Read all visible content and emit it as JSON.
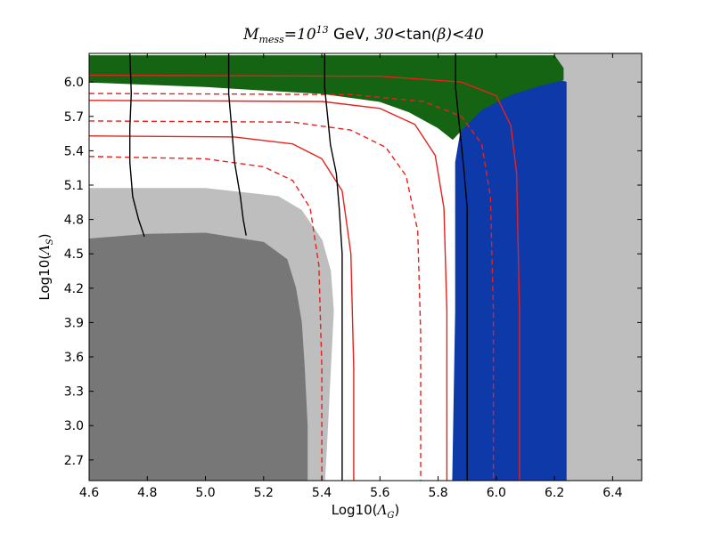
{
  "chart_data": {
    "type": "area",
    "title_parts": {
      "symbol_main": "M",
      "symbol_sub": "mess",
      "eq": "=10",
      "exp": "13",
      "text": " GeV, ",
      "math1": "30",
      "lt": "<",
      "func": "tan",
      "arg": "(β)",
      "math2": "40"
    },
    "xlabel": {
      "prefix": "Log10(",
      "symbol": "Λ",
      "sub": "G",
      "suffix": ")"
    },
    "ylabel": {
      "prefix": "Log10(",
      "symbol": "Λ",
      "sub": "S",
      "suffix": ")"
    },
    "xlim": [
      4.6,
      6.5
    ],
    "ylim": [
      2.52,
      6.25
    ],
    "xticks": [
      "4.6",
      "4.8",
      "5.0",
      "5.2",
      "5.4",
      "5.6",
      "5.8",
      "6.0",
      "6.2",
      "6.4"
    ],
    "yticks": [
      "2.7",
      "3.0",
      "3.3",
      "3.6",
      "3.9",
      "4.2",
      "4.5",
      "4.8",
      "5.1",
      "5.4",
      "5.7",
      "6.0"
    ],
    "colors": {
      "light_gray": "#bebebe",
      "dark_gray": "#777777",
      "green": "#146414",
      "blue": "#0e39a8",
      "red_contour": "#e8211c",
      "black_contour": "#000000"
    },
    "regions": [
      {
        "name": "excluded-light",
        "color": "#bebebe",
        "points": [
          [
            4.6,
            2.52
          ],
          [
            5.41,
            2.52
          ],
          [
            5.42,
            3.0
          ],
          [
            5.43,
            3.5
          ],
          [
            5.44,
            4.0
          ],
          [
            5.43,
            4.35
          ],
          [
            5.4,
            4.62
          ],
          [
            5.33,
            4.88
          ],
          [
            5.25,
            5.0
          ],
          [
            5.0,
            5.07
          ],
          [
            4.8,
            5.07
          ],
          [
            4.6,
            5.07
          ]
        ]
      },
      {
        "name": "excluded-dark",
        "color": "#777777",
        "points": [
          [
            4.6,
            2.52
          ],
          [
            5.35,
            2.52
          ],
          [
            5.35,
            3.0
          ],
          [
            5.34,
            3.5
          ],
          [
            5.33,
            3.9
          ],
          [
            5.31,
            4.2
          ],
          [
            5.28,
            4.45
          ],
          [
            5.2,
            4.6
          ],
          [
            5.0,
            4.68
          ],
          [
            4.8,
            4.67
          ],
          [
            4.6,
            4.63
          ]
        ]
      },
      {
        "name": "gray-right",
        "color": "#bebebe",
        "points": [
          [
            6.23,
            2.52
          ],
          [
            6.5,
            2.52
          ],
          [
            6.5,
            6.25
          ],
          [
            6.2,
            6.25
          ],
          [
            6.2,
            6.12
          ],
          [
            6.23,
            6.0
          ],
          [
            6.23,
            2.52
          ]
        ]
      },
      {
        "name": "blue-region",
        "color": "#0e39a8",
        "points": [
          [
            5.86,
            2.52
          ],
          [
            6.24,
            2.52
          ],
          [
            6.24,
            6.0
          ],
          [
            6.21,
            6.02
          ],
          [
            6.15,
            5.98
          ],
          [
            6.05,
            5.9
          ],
          [
            5.95,
            5.78
          ],
          [
            5.88,
            5.6
          ],
          [
            5.86,
            5.3
          ],
          [
            5.86,
            4.0
          ],
          [
            5.85,
            2.52
          ]
        ]
      },
      {
        "name": "green-region",
        "color": "#146414",
        "points": [
          [
            4.6,
            6.23
          ],
          [
            6.2,
            6.23
          ],
          [
            6.23,
            6.12
          ],
          [
            6.23,
            6.02
          ],
          [
            6.15,
            5.97
          ],
          [
            6.05,
            5.89
          ],
          [
            5.95,
            5.76
          ],
          [
            5.88,
            5.58
          ],
          [
            5.85,
            5.5
          ],
          [
            5.8,
            5.6
          ],
          [
            5.7,
            5.74
          ],
          [
            5.6,
            5.83
          ],
          [
            5.4,
            5.9
          ],
          [
            5.2,
            5.93
          ],
          [
            5.0,
            5.96
          ],
          [
            4.8,
            5.98
          ],
          [
            4.6,
            6.0
          ]
        ]
      }
    ],
    "contours": [
      {
        "name": "red-solid-1",
        "style": "solid",
        "color": "#e8211c",
        "points": [
          [
            4.6,
            5.53
          ],
          [
            5.1,
            5.52
          ],
          [
            5.3,
            5.46
          ],
          [
            5.4,
            5.33
          ],
          [
            5.47,
            5.05
          ],
          [
            5.5,
            4.5
          ],
          [
            5.51,
            3.5
          ],
          [
            5.51,
            2.52
          ]
        ]
      },
      {
        "name": "red-dashed-1",
        "style": "dashed",
        "color": "#e8211c",
        "points": [
          [
            4.6,
            5.35
          ],
          [
            5.0,
            5.33
          ],
          [
            5.2,
            5.26
          ],
          [
            5.3,
            5.14
          ],
          [
            5.36,
            4.9
          ],
          [
            5.39,
            4.4
          ],
          [
            5.4,
            3.5
          ],
          [
            5.4,
            2.52
          ]
        ]
      },
      {
        "name": "red-solid-2",
        "style": "solid",
        "color": "#e8211c",
        "points": [
          [
            4.6,
            5.84
          ],
          [
            5.4,
            5.83
          ],
          [
            5.6,
            5.77
          ],
          [
            5.72,
            5.63
          ],
          [
            5.79,
            5.36
          ],
          [
            5.82,
            4.9
          ],
          [
            5.83,
            4.0
          ],
          [
            5.83,
            2.52
          ]
        ]
      },
      {
        "name": "red-dashed-2",
        "style": "dashed",
        "color": "#e8211c",
        "points": [
          [
            4.6,
            5.66
          ],
          [
            5.3,
            5.65
          ],
          [
            5.5,
            5.58
          ],
          [
            5.62,
            5.43
          ],
          [
            5.69,
            5.18
          ],
          [
            5.73,
            4.7
          ],
          [
            5.74,
            3.8
          ],
          [
            5.74,
            2.52
          ]
        ]
      },
      {
        "name": "red-dashed-3",
        "style": "dashed",
        "color": "#e8211c",
        "points": [
          [
            4.6,
            5.9
          ],
          [
            5.5,
            5.89
          ],
          [
            5.75,
            5.83
          ],
          [
            5.88,
            5.7
          ],
          [
            5.95,
            5.46
          ],
          [
            5.98,
            5.0
          ],
          [
            5.99,
            4.0
          ],
          [
            5.99,
            2.52
          ]
        ]
      },
      {
        "name": "red-solid-3",
        "style": "solid",
        "color": "#e8211c",
        "points": [
          [
            4.6,
            6.06
          ],
          [
            5.6,
            6.05
          ],
          [
            5.88,
            6.0
          ],
          [
            6.0,
            5.88
          ],
          [
            6.05,
            5.62
          ],
          [
            6.07,
            5.2
          ],
          [
            6.08,
            4.0
          ],
          [
            6.08,
            2.52
          ]
        ]
      },
      {
        "name": "black-1",
        "style": "solid",
        "color": "#000000",
        "points": [
          [
            4.74,
            6.25
          ],
          [
            4.745,
            5.9
          ],
          [
            4.74,
            5.6
          ],
          [
            4.74,
            5.3
          ],
          [
            4.75,
            5.0
          ],
          [
            4.77,
            4.8
          ],
          [
            4.79,
            4.65
          ]
        ]
      },
      {
        "name": "black-2",
        "style": "solid",
        "color": "#000000",
        "points": [
          [
            5.08,
            6.25
          ],
          [
            5.08,
            5.9
          ],
          [
            5.09,
            5.6
          ],
          [
            5.1,
            5.3
          ],
          [
            5.12,
            5.0
          ],
          [
            5.13,
            4.8
          ],
          [
            5.14,
            4.66
          ]
        ]
      },
      {
        "name": "black-3",
        "style": "solid",
        "color": "#000000",
        "points": [
          [
            5.41,
            6.25
          ],
          [
            5.41,
            5.95
          ],
          [
            5.42,
            5.7
          ],
          [
            5.43,
            5.45
          ],
          [
            5.45,
            5.2
          ],
          [
            5.46,
            4.9
          ],
          [
            5.47,
            4.5
          ],
          [
            5.47,
            3.5
          ],
          [
            5.47,
            2.52
          ]
        ]
      },
      {
        "name": "black-4",
        "style": "solid",
        "color": "#000000",
        "points": [
          [
            5.86,
            6.25
          ],
          [
            5.86,
            5.95
          ],
          [
            5.87,
            5.7
          ],
          [
            5.88,
            5.45
          ],
          [
            5.89,
            5.2
          ],
          [
            5.9,
            4.9
          ],
          [
            5.9,
            4.5
          ],
          [
            5.9,
            3.5
          ],
          [
            5.9,
            2.52
          ]
        ]
      }
    ]
  }
}
